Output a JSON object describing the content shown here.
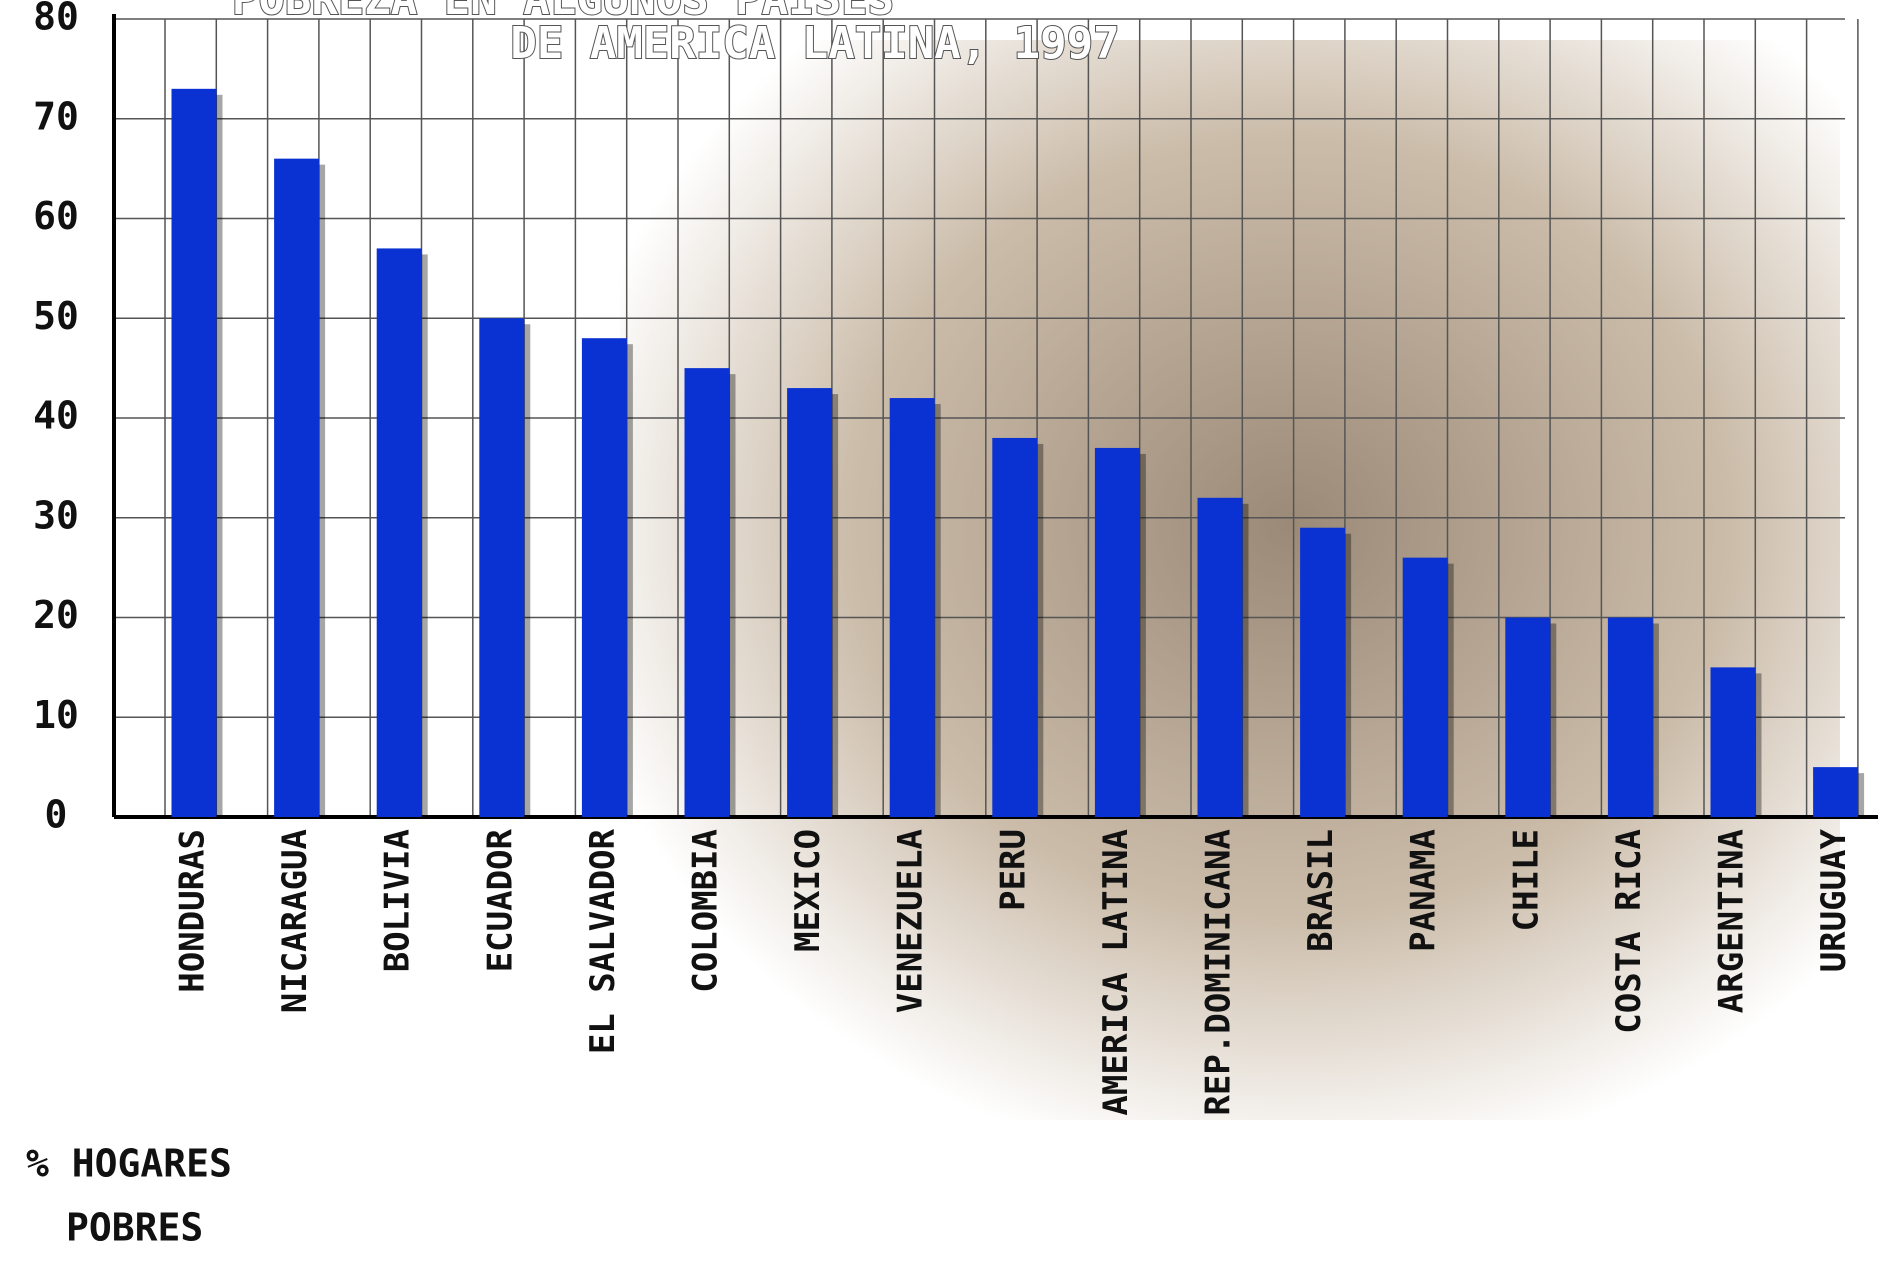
{
  "chart_data": {
    "type": "bar",
    "title": [
      "POBREZA EN ALGUNOS PAISES",
      "DE AMERICA LATINA, 1997"
    ],
    "y_label": [
      "% HOGARES",
      "POBRES"
    ],
    "categories": [
      "HONDURAS",
      "NICARAGUA",
      "BOLIVIA",
      "ECUADOR",
      "EL SALVADOR",
      "COLOMBIA",
      "MEXICO",
      "VENEZUELA",
      "PERU",
      "AMERICA LATINA",
      "REP.DOMINICANA",
      "BRASIL",
      "PANAMA",
      "CHILE",
      "COSTA RICA",
      "ARGENTINA",
      "URUGUAY"
    ],
    "values": [
      73,
      66,
      57,
      50,
      48,
      45,
      43,
      42,
      38,
      37,
      32,
      29,
      26,
      20,
      20,
      15,
      5
    ],
    "color": "#0a32d2",
    "ylim": [
      0,
      80
    ],
    "yticks": [
      0,
      10,
      20,
      30,
      40,
      50,
      60,
      70,
      80
    ],
    "grid": true
  }
}
